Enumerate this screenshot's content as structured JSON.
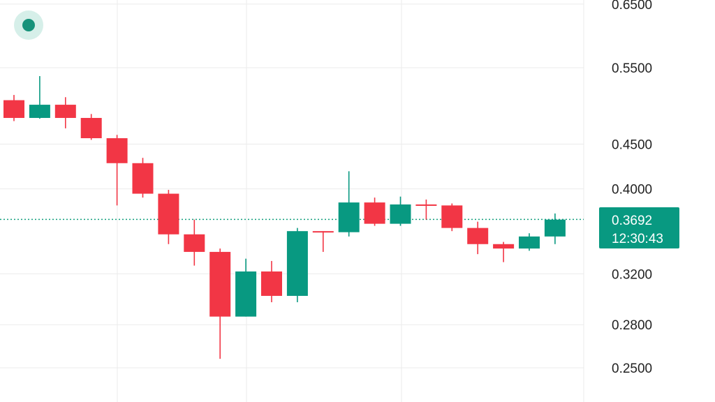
{
  "colors": {
    "up": "#089981",
    "down": "#f23645",
    "grid": "#ebebeb",
    "current_line": "#12a07e",
    "tag_bg": "#089981",
    "live_dot": "#16927a",
    "live_dot_halo": "#d6efe9"
  },
  "status": {
    "live_icon": "live-indicator-dot"
  },
  "current_price": {
    "price_label": "0.3692",
    "countdown": "12:30:43",
    "value": 0.3692
  },
  "chart_data": {
    "type": "candlestick",
    "y_scale": "log",
    "ylim": [
      0.24,
      0.66
    ],
    "y_ticks": [
      0.25,
      0.28,
      0.32,
      0.4,
      0.45,
      0.55,
      0.65
    ],
    "y_tick_labels": [
      "0.2500",
      "0.2800",
      "0.3200",
      "0.4000",
      "0.4500",
      "0.5500",
      "0.6500"
    ],
    "grid": true,
    "x_labels": [],
    "candles": [
      {
        "o": 0.505,
        "h": 0.512,
        "l": 0.478,
        "c": 0.482
      },
      {
        "o": 0.482,
        "h": 0.538,
        "l": 0.481,
        "c": 0.499
      },
      {
        "o": 0.499,
        "h": 0.509,
        "l": 0.469,
        "c": 0.482
      },
      {
        "o": 0.482,
        "h": 0.487,
        "l": 0.455,
        "c": 0.457
      },
      {
        "o": 0.457,
        "h": 0.461,
        "l": 0.383,
        "c": 0.428
      },
      {
        "o": 0.428,
        "h": 0.434,
        "l": 0.391,
        "c": 0.395
      },
      {
        "o": 0.395,
        "h": 0.399,
        "l": 0.346,
        "c": 0.355
      },
      {
        "o": 0.355,
        "h": 0.369,
        "l": 0.327,
        "c": 0.339
      },
      {
        "o": 0.339,
        "h": 0.342,
        "l": 0.256,
        "c": 0.286
      },
      {
        "o": 0.286,
        "h": 0.333,
        "l": 0.286,
        "c": 0.322
      },
      {
        "o": 0.322,
        "h": 0.331,
        "l": 0.297,
        "c": 0.302
      },
      {
        "o": 0.302,
        "h": 0.361,
        "l": 0.297,
        "c": 0.358
      },
      {
        "o": 0.358,
        "h": 0.358,
        "l": 0.339,
        "c": 0.357
      },
      {
        "o": 0.357,
        "h": 0.419,
        "l": 0.353,
        "c": 0.386
      },
      {
        "o": 0.386,
        "h": 0.391,
        "l": 0.363,
        "c": 0.365
      },
      {
        "o": 0.365,
        "h": 0.392,
        "l": 0.363,
        "c": 0.384
      },
      {
        "o": 0.384,
        "h": 0.389,
        "l": 0.369,
        "c": 0.383
      },
      {
        "o": 0.383,
        "h": 0.385,
        "l": 0.358,
        "c": 0.361
      },
      {
        "o": 0.361,
        "h": 0.367,
        "l": 0.337,
        "c": 0.346
      },
      {
        "o": 0.346,
        "h": 0.348,
        "l": 0.33,
        "c": 0.342
      },
      {
        "o": 0.342,
        "h": 0.356,
        "l": 0.34,
        "c": 0.353
      },
      {
        "o": 0.353,
        "h": 0.375,
        "l": 0.346,
        "c": 0.369
      }
    ]
  }
}
